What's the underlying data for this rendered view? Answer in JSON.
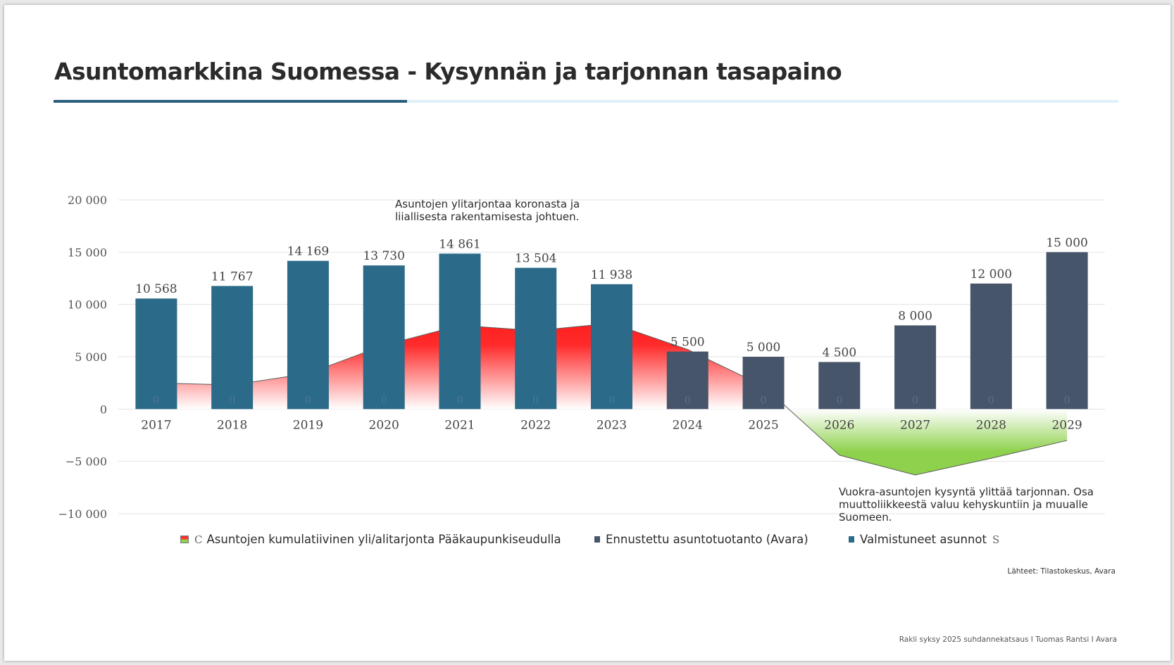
{
  "title": "Asuntomarkkina Suomessa  - Kysynnän ja tarjonnan tasapaino",
  "annotations": {
    "top": "Asuntojen ylitarjontaa koronasta ja liiallisesta rakentamisesta johtuen.",
    "bottom": "Vuokra-asuntojen kysyntä ylittää tarjonnan. Osa muuttoliikkeestä valuu kehyskuntiin ja muualle Suomeen."
  },
  "legend": {
    "area": "Asuntojen kumulatiivinen yli/alitarjonta Pääkaupunkiseudulla",
    "area_glyph": "C",
    "forecast": "Ennustettu asuntotuotanto (Avara)",
    "actual": "Valmistuneet asunnot",
    "actual_glyph": "S"
  },
  "source": "Lähteet: Tilastokeskus, Avara",
  "footer": "Rakli syksy 2025 suhdannekatsaus I Tuomas Rantsi I Avara",
  "colors": {
    "actual": "#2b6a89",
    "forecast": "#47556b",
    "oversupply": "#ff2a2a",
    "undersupply": "#8ed14c",
    "grid": "#e3e3e3"
  },
  "chart_data": {
    "type": "bar",
    "categories": [
      "2017",
      "2018",
      "2019",
      "2020",
      "2021",
      "2022",
      "2023",
      "2024",
      "2025",
      "2026",
      "2027",
      "2028",
      "2029"
    ],
    "series": [
      {
        "name": "Valmistuneet asunnot",
        "type": "bar",
        "values": [
          10568,
          11767,
          14169,
          13730,
          14861,
          13504,
          11938,
          null,
          null,
          null,
          null,
          null,
          null
        ],
        "labels": [
          "10 568",
          "11 767",
          "14 169",
          "13 730",
          "14 861",
          "13 504",
          "11 938",
          "",
          "",
          "",
          "",
          "",
          ""
        ]
      },
      {
        "name": "Ennustettu asuntotuotanto (Avara)",
        "type": "bar",
        "values": [
          null,
          null,
          null,
          null,
          null,
          null,
          null,
          5500,
          5000,
          4500,
          8000,
          12000,
          15000
        ],
        "labels": [
          "",
          "",
          "",
          "",
          "",
          "",
          "",
          "5 500",
          "5 000",
          "4 500",
          "8 000",
          "12 000",
          "15 000"
        ]
      },
      {
        "name": "Asuntojen kumulatiivinen yli/alitarjonta Pääkaupunkiseudulla",
        "type": "area",
        "values": [
          2500,
          2300,
          3400,
          6100,
          8000,
          7500,
          8200,
          5700,
          2200,
          -4400,
          -6300,
          -4700,
          -3000
        ]
      }
    ],
    "inner_labels": [
      "0",
      "0",
      "0",
      "0",
      "0",
      "0",
      "0",
      "0",
      "0",
      "0",
      "0",
      "0",
      "0"
    ],
    "ylim": [
      -10000,
      20000
    ],
    "yticks": [
      20000,
      15000,
      10000,
      5000,
      0,
      -5000,
      -10000
    ],
    "ytick_labels": [
      "20 000",
      "15 000",
      "10 000",
      "5 000",
      "0",
      "−5 000",
      "−10 000"
    ],
    "xlabel": "",
    "ylabel": "",
    "grid": true,
    "legend_position": "bottom"
  }
}
